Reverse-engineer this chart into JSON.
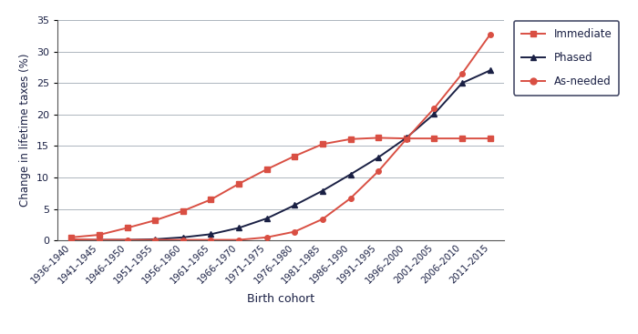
{
  "categories": [
    "1936–1940",
    "1941–1945",
    "1946–1950",
    "1951–1955",
    "1956–1960",
    "1961–1965",
    "1966–1970",
    "1971–1975",
    "1976–1980",
    "1981–1985",
    "1986–1990",
    "1991–1995",
    "1996–2000",
    "2001–2005",
    "2006–2010",
    "2011–2015"
  ],
  "immediate": [
    0.5,
    0.9,
    2.0,
    3.2,
    4.7,
    6.5,
    9.0,
    11.3,
    13.4,
    15.3,
    16.1,
    16.3,
    16.2,
    16.2,
    16.2,
    16.2
  ],
  "phased": [
    0.1,
    0.1,
    0.1,
    0.2,
    0.5,
    1.0,
    2.0,
    3.5,
    5.6,
    7.9,
    10.5,
    13.2,
    16.3,
    20.1,
    25.0,
    27.0
  ],
  "as_needed": [
    0.2,
    0.1,
    0.1,
    0.1,
    0.1,
    0.1,
    0.1,
    0.5,
    1.4,
    3.4,
    6.7,
    11.0,
    16.1,
    21.0,
    26.5,
    32.7
  ],
  "immediate_color": "#d94f43",
  "phased_color": "#1a2044",
  "as_needed_color": "#d94f43",
  "ylabel": "Change in lifetime taxes (%)",
  "xlabel": "Birth cohort",
  "ylim": [
    0,
    35
  ],
  "yticks": [
    0,
    5,
    10,
    15,
    20,
    25,
    30,
    35
  ],
  "legend_labels": [
    "Immediate",
    "Phased",
    "As-needed"
  ],
  "grid_color": "#adb5bd",
  "tick_label_color": "#1a2044",
  "axis_label_color": "#1a2044"
}
